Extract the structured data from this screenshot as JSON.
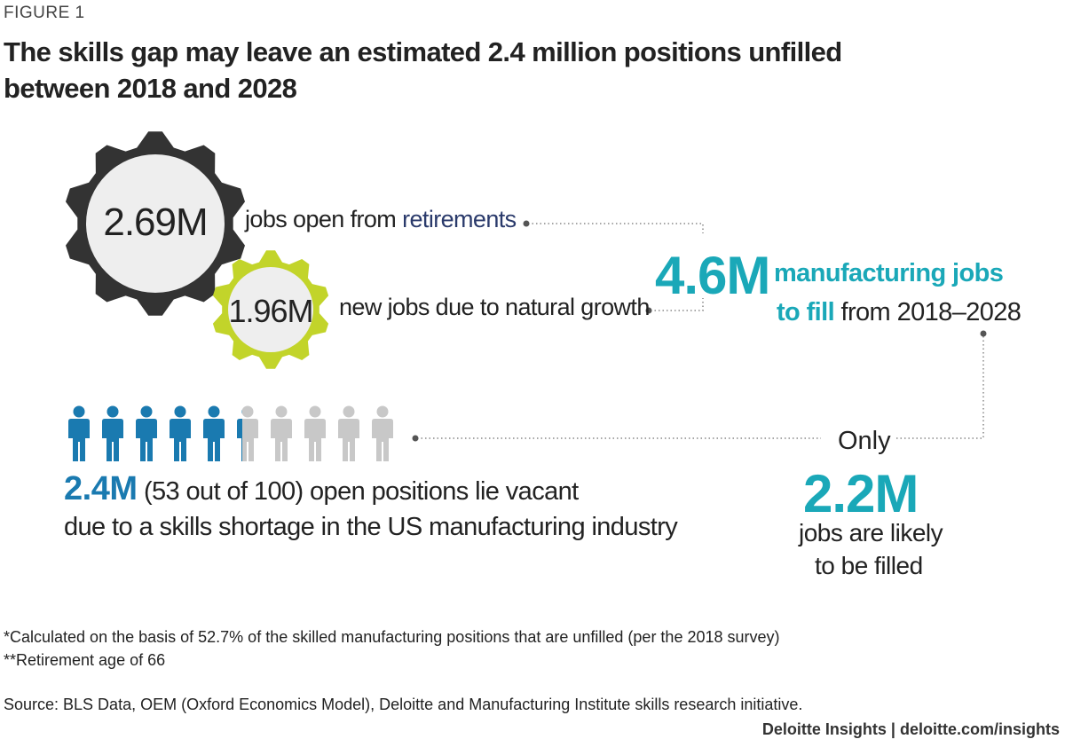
{
  "figure_label": "FIGURE 1",
  "title": "The skills gap may leave an estimated 2.4 million positions unfilled between 2018 and 2028",
  "retirements": {
    "value": "2.69M",
    "text_prefix": "jobs open from ",
    "text_highlight": "retirements"
  },
  "growth": {
    "value": "1.96M",
    "text": "new jobs due to natural growth"
  },
  "total": {
    "value": "4.6M",
    "line1": "manufacturing jobs",
    "line2_bold": "to fill",
    "line2_rest": " from 2018–2028"
  },
  "filled": {
    "prefix": "Only",
    "value": "2.2M",
    "line1": "jobs are likely",
    "line2": "to be filled"
  },
  "vacant": {
    "value": "2.4M",
    "line1_rest": " (53 out of 100) open positions lie vacant",
    "line2": "due to a skills shortage in the US manufacturing industry"
  },
  "footnotes": {
    "note1": "*Calculated on the basis of 52.7% of the skilled manufacturing positions that are unfilled (per the 2018 survey)",
    "note2": "**Retirement age of 66",
    "source": "Source: BLS Data, OEM (Oxford Economics Model), Deloitte and Manufacturing Institute skills research initiative.",
    "brand": "Deloitte Insights | deloitte.com/insights"
  },
  "colors": {
    "teal": "#1aa8b8",
    "blue": "#1a7ab0",
    "gear_dark": "#333333",
    "gear_green": "#c2d42a",
    "person_grey": "#c8c8c8",
    "gear_face": "#eeeeee"
  },
  "chart_data": {
    "type": "pictogram",
    "values": [
      {
        "label": "jobs open from retirements",
        "value": 2.69,
        "unit": "M"
      },
      {
        "label": "new jobs due to natural growth",
        "value": 1.96,
        "unit": "M"
      },
      {
        "label": "manufacturing jobs to fill from 2018–2028",
        "value": 4.6,
        "unit": "M"
      },
      {
        "label": "jobs are likely to be filled",
        "value": 2.2,
        "unit": "M"
      },
      {
        "label": "open positions lie vacant",
        "value": 2.4,
        "unit": "M"
      }
    ],
    "pictogram": {
      "total_icons": 10,
      "filled_fraction": 0.53
    }
  }
}
